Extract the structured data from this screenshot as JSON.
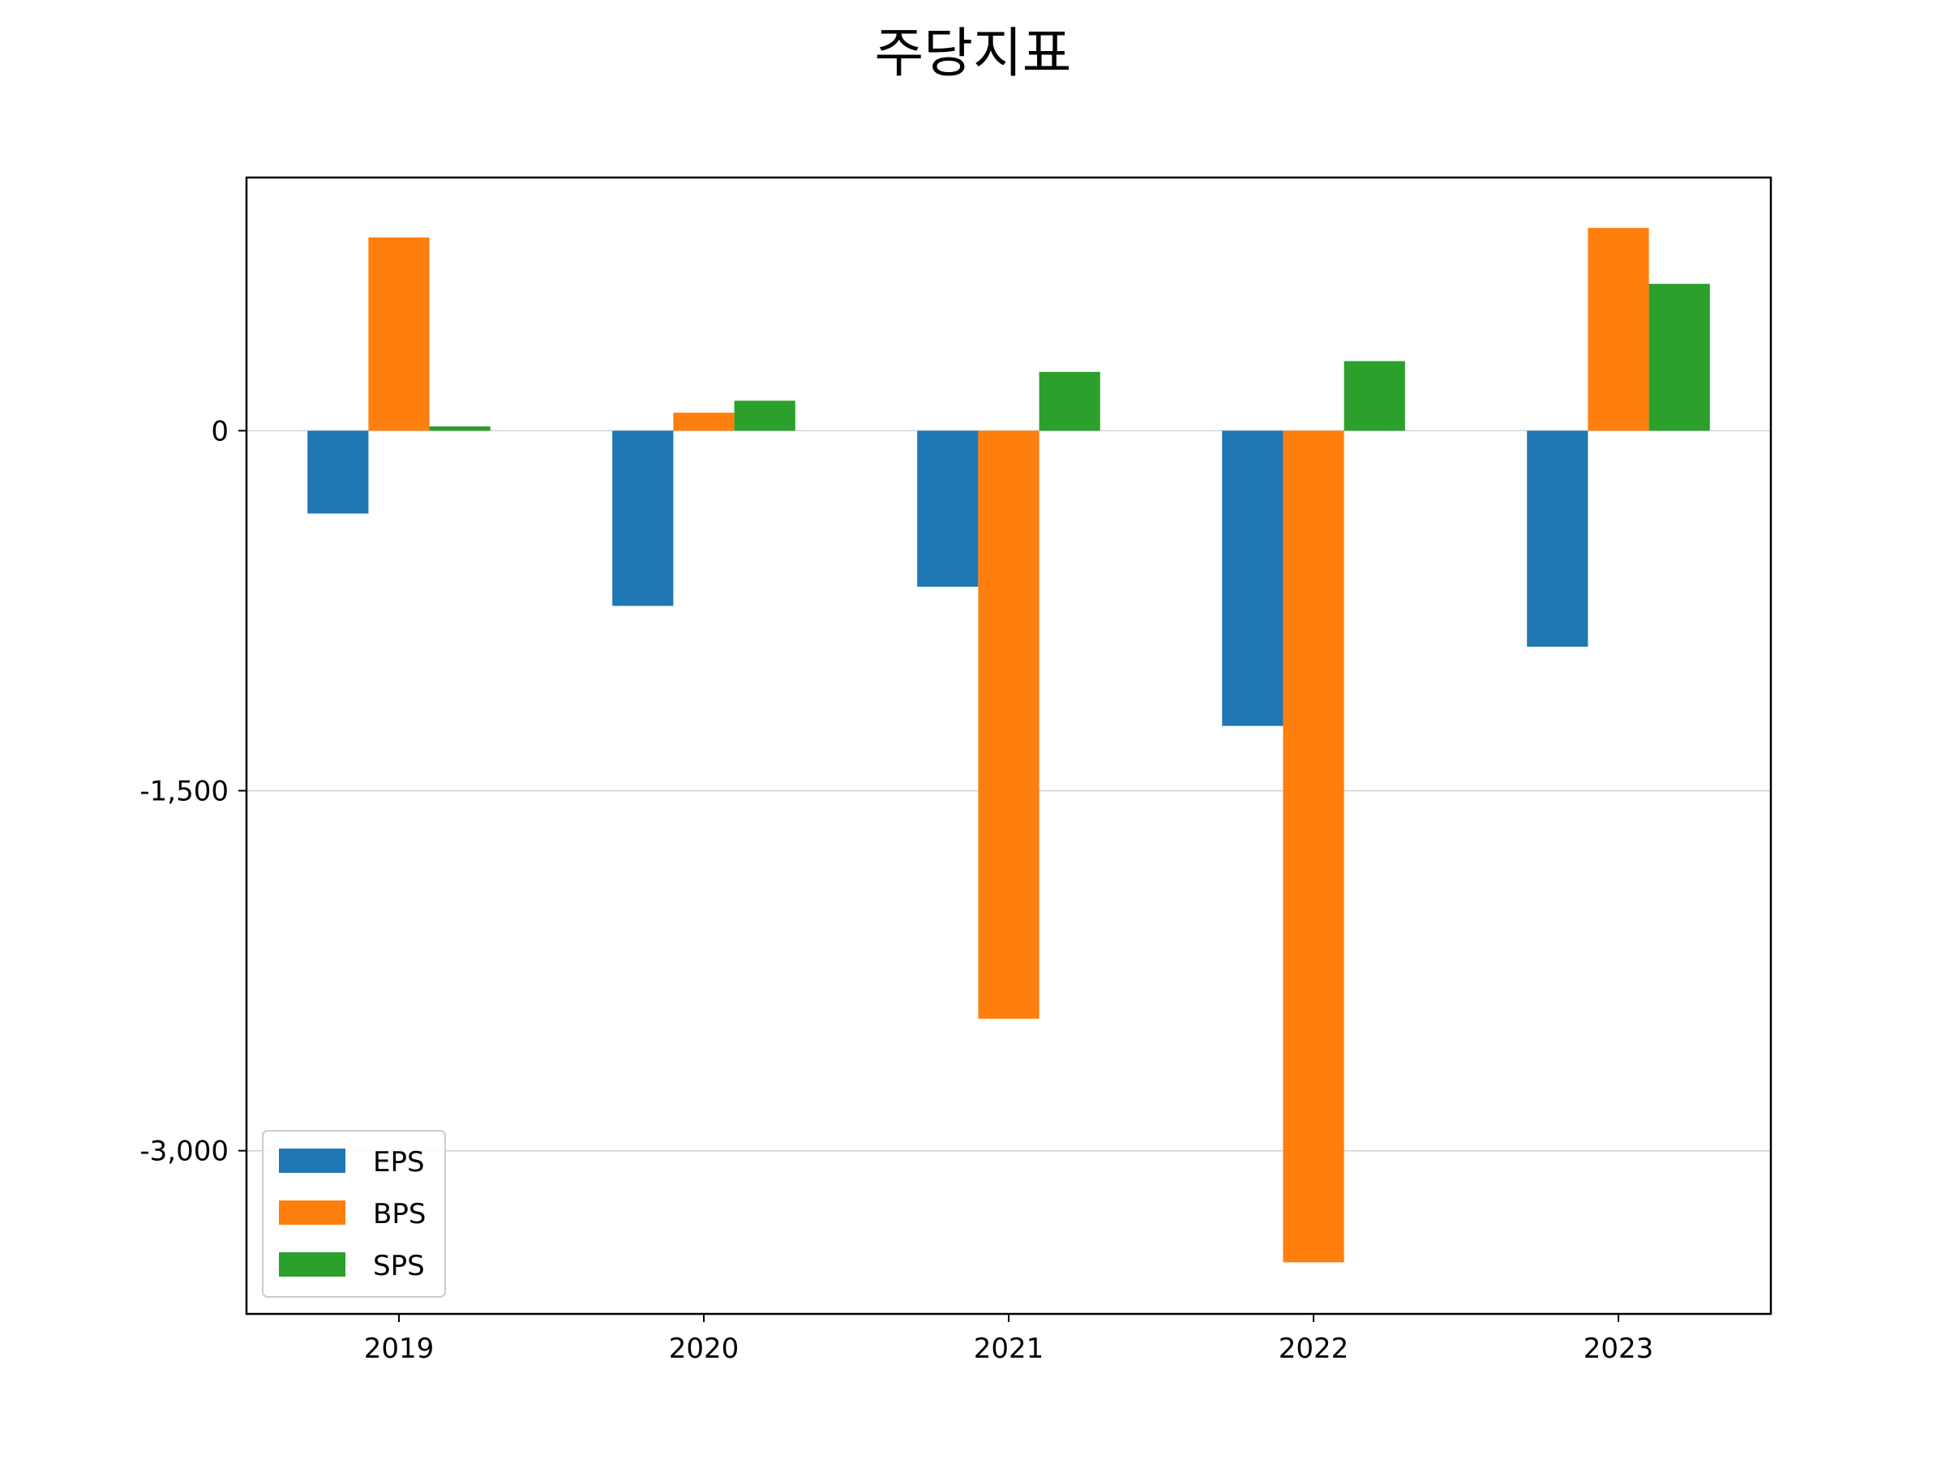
{
  "chart_data": {
    "type": "bar",
    "title": "주당지표",
    "xlabel": "",
    "ylabel": "",
    "categories": [
      "2019",
      "2020",
      "2021",
      "2022",
      "2023"
    ],
    "series": [
      {
        "name": "EPS",
        "color": "#1f77b4",
        "values": [
          -345,
          -730,
          -650,
          -1230,
          -900
        ]
      },
      {
        "name": "BPS",
        "color": "#ff7f0e",
        "values": [
          805,
          75,
          -2450,
          -3465,
          845
        ]
      },
      {
        "name": "SPS",
        "color": "#2ca02c",
        "values": [
          18,
          125,
          245,
          290,
          612
        ]
      }
    ],
    "ylim": [
      -3680,
      1055
    ],
    "yticks": [
      0,
      -1500,
      -3000
    ],
    "ytick_labels": [
      "0",
      "-1,500",
      "-3,000"
    ],
    "grid": "y",
    "legend": "lower-left"
  }
}
